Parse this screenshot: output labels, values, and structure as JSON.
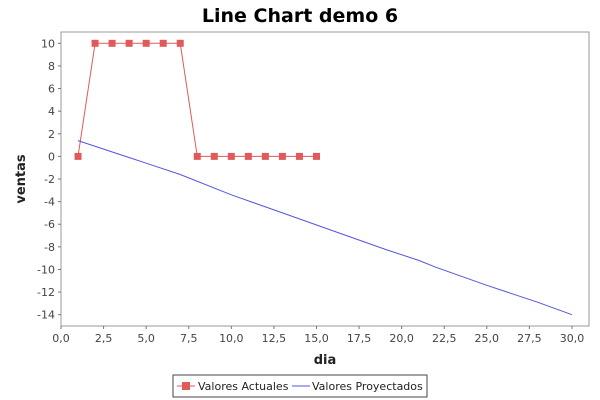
{
  "chart_data": {
    "type": "line",
    "title": "Line Chart demo 6",
    "xlabel": "dia",
    "ylabel": "ventas",
    "xlim": [
      0,
      31
    ],
    "ylim": [
      -15,
      11
    ],
    "x_ticks": [
      0,
      2.5,
      5,
      7.5,
      10,
      12.5,
      15,
      17.5,
      20,
      22.5,
      25,
      27.5,
      30
    ],
    "x_tick_labels": [
      "0,0",
      "2,5",
      "5,0",
      "7,5",
      "10,0",
      "12,5",
      "15,0",
      "17,5",
      "20,0",
      "22,5",
      "25,0",
      "27,5",
      "30,0"
    ],
    "y_ticks": [
      10,
      8,
      6,
      4,
      2,
      0,
      -2,
      -4,
      -6,
      -8,
      -10,
      -12,
      -14
    ],
    "y_tick_labels": [
      "10",
      "8",
      "6",
      "4",
      "2",
      "0",
      "-2",
      "-4",
      "-6",
      "-8",
      "-10",
      "-12",
      "-14"
    ],
    "grid": false,
    "legend_position": "bottom-center",
    "series": [
      {
        "name": "Valores Actuales",
        "color": "#e05a5a",
        "marker": "square",
        "x": [
          1,
          2,
          3,
          4,
          5,
          6,
          7,
          8,
          9,
          10,
          11,
          12,
          13,
          14,
          15
        ],
        "y": [
          0,
          10,
          10,
          10,
          10,
          10,
          10,
          0,
          0,
          0,
          0,
          0,
          0,
          0,
          0
        ]
      },
      {
        "name": "Valores Proyectados",
        "color": "#5555dd",
        "marker": "none",
        "x": [
          1,
          5,
          7,
          10,
          13,
          16,
          19,
          21,
          22,
          25,
          28,
          30
        ],
        "y": [
          1.4,
          -0.6,
          -1.6,
          -3.4,
          -5.0,
          -6.6,
          -8.2,
          -9.2,
          -9.8,
          -11.4,
          -12.9,
          -14.0
        ]
      }
    ]
  }
}
